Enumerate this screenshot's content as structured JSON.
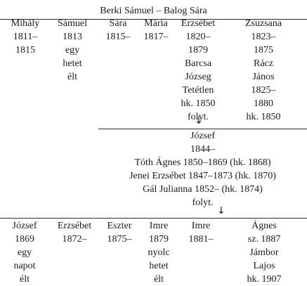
{
  "title": "Berki Sámuel – Balog Sára",
  "row1": [
    {
      "lines": [
        "Mihály",
        "1811–",
        "1815"
      ]
    },
    {
      "lines": [
        "Sámuel",
        "1813",
        "egy",
        "hetet",
        "élt"
      ]
    },
    {
      "lines": [
        "Sára",
        "1815–"
      ]
    },
    {
      "lines": [
        "Mária",
        "1817–"
      ]
    },
    {
      "lines": [
        "Erzsébet",
        "1820–",
        "1879",
        "Barcsa",
        "Józseg",
        "Tetétlen",
        "hk. 1850",
        "folyt."
      ]
    },
    {
      "lines": [
        "Zsuzsana",
        "1823–",
        "1875",
        "Rácz",
        "János",
        "1825–",
        "1880",
        "hk. 1850"
      ]
    }
  ],
  "middle": {
    "lines": [
      "József",
      "1844–",
      "Tóth Ágnes 1850–1869 (hk. 1868)",
      "Jenei Erzsébet 1847–1873 (hk. 1870)",
      "Gál Julianna 1852– (hk. 1874)",
      "folyt."
    ]
  },
  "row2": [
    {
      "lines": [
        "József",
        "1869",
        "egy",
        "napot",
        "élt"
      ]
    },
    {
      "lines": [
        "Erzsébet",
        "1872–"
      ]
    },
    {
      "lines": [
        "Eszter",
        "1875–"
      ]
    },
    {
      "lines": [
        "Imre",
        "1879",
        "nyolc",
        "hetet",
        "élt"
      ]
    },
    {
      "lines": [
        "Imre",
        "1881–"
      ]
    },
    {
      "lines": [
        "Ágnes",
        "sz. 1887",
        "Jámbor",
        "Lajos",
        "hk. 1907"
      ]
    }
  ],
  "arrow_symbol": "↓"
}
